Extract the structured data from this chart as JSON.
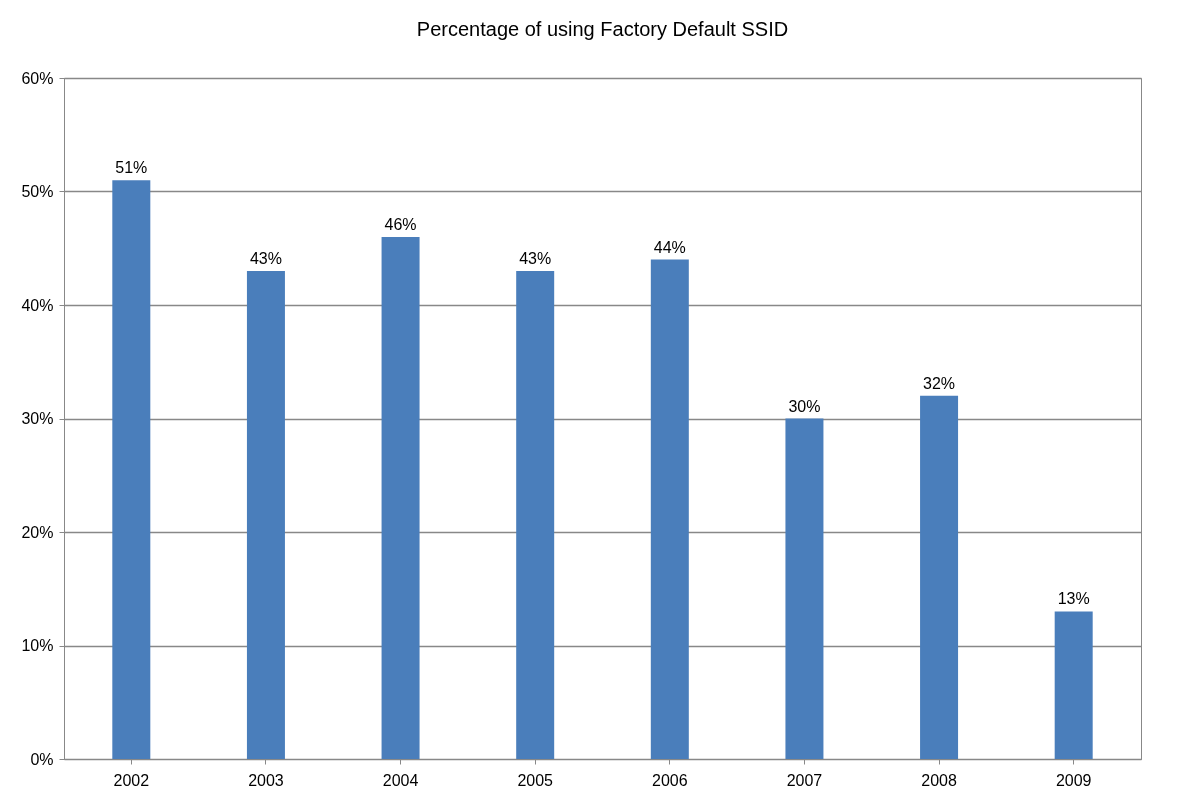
{
  "chart_data": {
    "type": "bar",
    "title": "Percentage of using Factory Default SSID",
    "categories": [
      "2002",
      "2003",
      "2004",
      "2005",
      "2006",
      "2007",
      "2008",
      "2009"
    ],
    "values": [
      51,
      43,
      46,
      43,
      44,
      30,
      32,
      13
    ],
    "value_labels": [
      "51%",
      "43%",
      "46%",
      "43%",
      "44%",
      "30%",
      "32%",
      "13%"
    ],
    "color": "#4a7ebb",
    "ylim": [
      0,
      60
    ],
    "yticks": [
      {
        "value": 0,
        "label": "0%"
      },
      {
        "value": 10,
        "label": "10%"
      },
      {
        "value": 20,
        "label": "20%"
      },
      {
        "value": 30,
        "label": "30%"
      },
      {
        "value": 40,
        "label": "40%"
      },
      {
        "value": 50,
        "label": "50%"
      },
      {
        "value": 60,
        "label": "60%"
      }
    ],
    "grid": "y"
  }
}
